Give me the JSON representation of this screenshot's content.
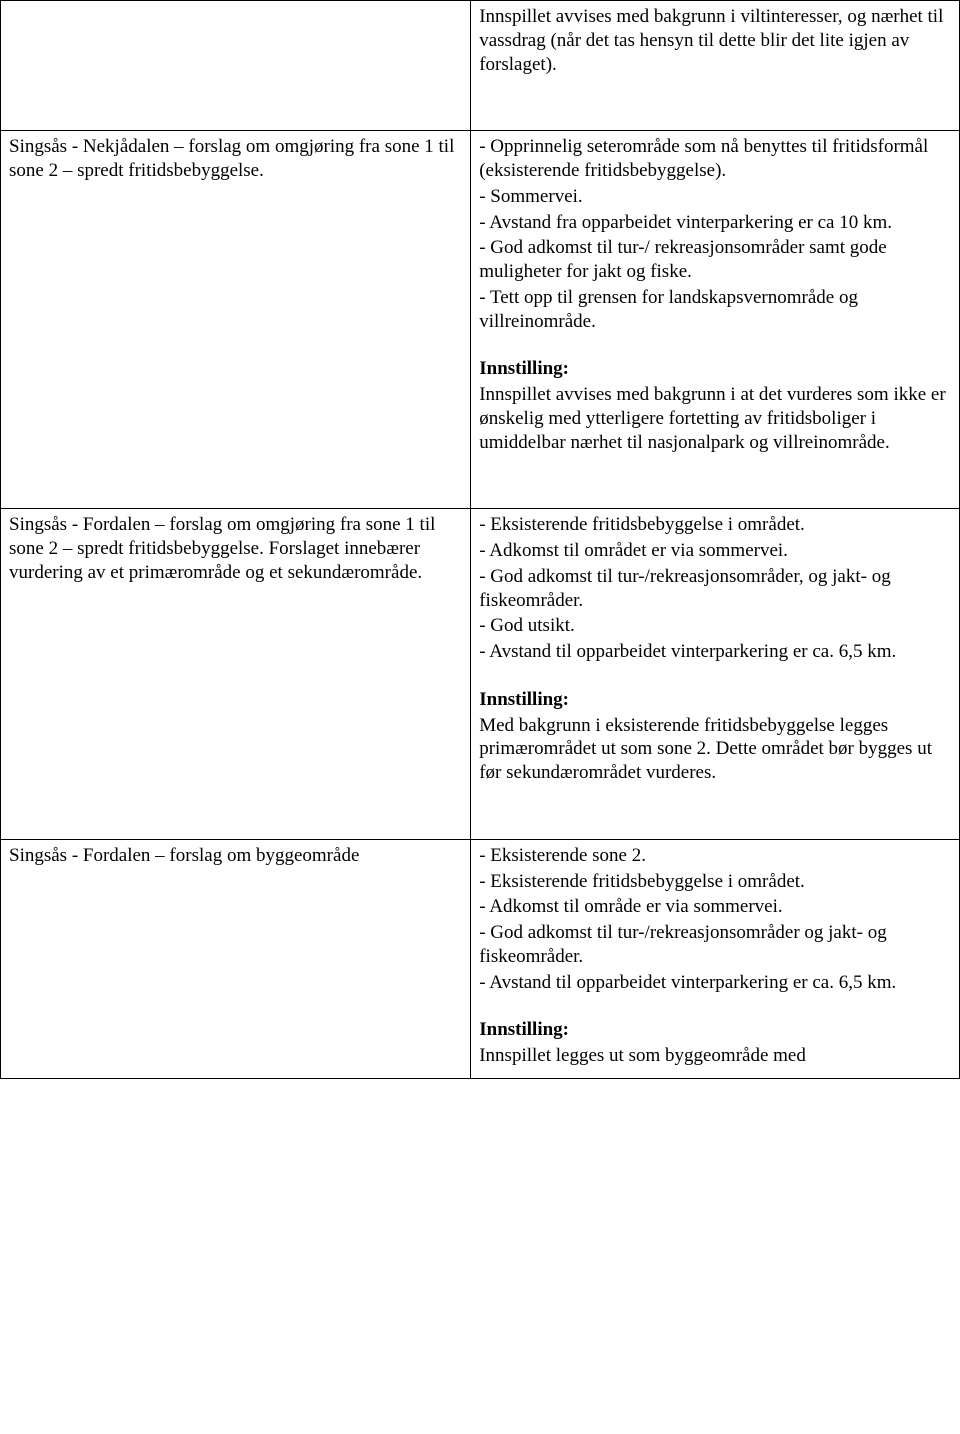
{
  "rows": [
    {
      "left": [],
      "right": [
        {
          "text": "Innspillet avvises med bakgrunn i viltinteresser, og nærhet til vassdrag (når det tas hensyn til dette blir det lite igjen av forslaget).",
          "bold": false
        }
      ]
    },
    {
      "left": [
        {
          "text": "Singsås - Nekjådalen – forslag om omgjøring fra sone 1 til sone 2 – spredt fritidsbebyggelse.",
          "bold": false
        }
      ],
      "right": [
        {
          "text": "- Opprinnelig seterområde som nå benyttes til fritidsformål (eksisterende fritidsbebyggelse).",
          "bold": false
        },
        {
          "text": "- Sommervei.",
          "bold": false
        },
        {
          "text": "- Avstand fra opparbeidet vinterparkering er ca 10 km.",
          "bold": false
        },
        {
          "text": "- God adkomst til tur-/ rekreasjonsområder samt gode muligheter for jakt og fiske.",
          "bold": false
        },
        {
          "text": "- Tett opp til grensen for landskapsvernområde og villreinområde.",
          "bold": false
        },
        {
          "gap": "section-gap"
        },
        {
          "text": "Innstilling:",
          "bold": true
        },
        {
          "text": "Innspillet avvises med bakgrunn i at det vurderes som ikke er ønskelig med ytterligere fortetting av fritidsboliger i umiddelbar nærhet til nasjonalpark og villreinområde.",
          "bold": false
        }
      ]
    },
    {
      "left": [
        {
          "text": "Singsås - Fordalen – forslag om omgjøring fra sone 1 til sone 2 – spredt fritidsbebyggelse. Forslaget innebærer vurdering av et primærområde og et sekundærområde.",
          "bold": false
        }
      ],
      "right": [
        {
          "text": "- Eksisterende fritidsbebyggelse i området.",
          "bold": false
        },
        {
          "text": "- Adkomst til området er via sommervei.",
          "bold": false
        },
        {
          "text": "- God adkomst til tur-/rekreasjonsområder, og jakt- og fiskeområder.",
          "bold": false
        },
        {
          "text": "- God utsikt.",
          "bold": false
        },
        {
          "text": "- Avstand til opparbeidet vinterparkering er ca. 6,5 km.",
          "bold": false
        },
        {
          "gap": "section-gap"
        },
        {
          "text": "Innstilling:",
          "bold": true
        },
        {
          "text": "Med bakgrunn i eksisterende fritidsbebyggelse legges primærområdet ut som sone 2. Dette området bør bygges ut før sekundærområdet vurderes.",
          "bold": false
        }
      ]
    },
    {
      "left": [
        {
          "text": "Singsås - Fordalen – forslag om byggeområde",
          "bold": false
        }
      ],
      "right": [
        {
          "text": "- Eksisterende sone 2.",
          "bold": false
        },
        {
          "text": "- Eksisterende fritidsbebyggelse i området.",
          "bold": false
        },
        {
          "text": "- Adkomst til område er via sommervei.",
          "bold": false
        },
        {
          "text": "- God adkomst til tur-/rekreasjonsområder og jakt- og fiskeområder.",
          "bold": false
        },
        {
          "text": "- Avstand til opparbeidet vinterparkering er ca. 6,5 km.",
          "bold": false
        },
        {
          "gap": "section-gap"
        },
        {
          "text": "Innstilling:",
          "bold": true
        },
        {
          "text": "Innspillet legges ut som byggeområde med",
          "bold": false
        }
      ]
    }
  ]
}
